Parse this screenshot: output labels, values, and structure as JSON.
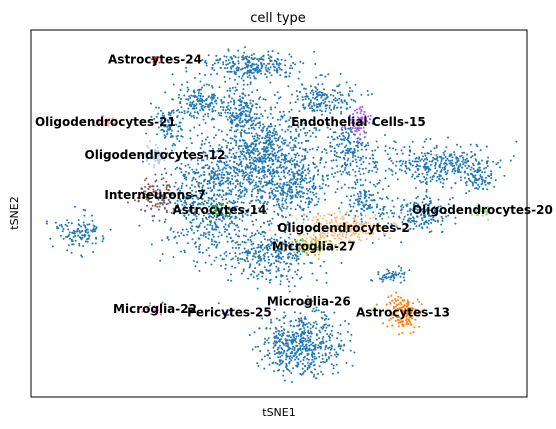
{
  "chart_data": {
    "type": "scatter",
    "title": "cell type",
    "xlabel": "tSNE1",
    "ylabel": "tSNE2",
    "xlim": [
      0,
      100
    ],
    "ylim": [
      0,
      100
    ],
    "grid": false,
    "legend": "on data",
    "series": [
      {
        "name": "",
        "color": "#1f77b4",
        "kind": "background"
      },
      {
        "name": "Astrocytes-24",
        "color": "#d62728",
        "x": 25,
        "y": 92
      },
      {
        "name": "Oligodendrocytes-21",
        "color": "#ff9896",
        "x": 15,
        "y": 75
      },
      {
        "name": "Oligodendrocytes-12",
        "color": "#aec7e8",
        "x": 25,
        "y": 66
      },
      {
        "name": "Interneurons-7",
        "color": "#8c564b",
        "x": 25,
        "y": 55
      },
      {
        "name": "Astrocytes-14",
        "color": "#2ca02c",
        "x": 38,
        "y": 51
      },
      {
        "name": "Endothelial Cells-15",
        "color": "#b254f0",
        "x": 66,
        "y": 75
      },
      {
        "name": "Oligodendrocytes-20",
        "color": "#98df8a",
        "x": 91,
        "y": 51
      },
      {
        "name": "Oligodendrocytes-2",
        "color": "#ffbb78",
        "x": 63,
        "y": 46
      },
      {
        "name": "Microglia-27",
        "color": "#bcbd22",
        "x": 57,
        "y": 41
      },
      {
        "name": "Microglia-22",
        "color": "#e377c2",
        "x": 25,
        "y": 24
      },
      {
        "name": "Pericytes-25",
        "color": "#9467bd",
        "x": 40,
        "y": 23
      },
      {
        "name": "Microglia-26",
        "color": "#7f7f7f",
        "x": 56,
        "y": 26
      },
      {
        "name": "Astrocytes-13",
        "color": "#ff7f0e",
        "x": 75,
        "y": 23
      }
    ]
  }
}
